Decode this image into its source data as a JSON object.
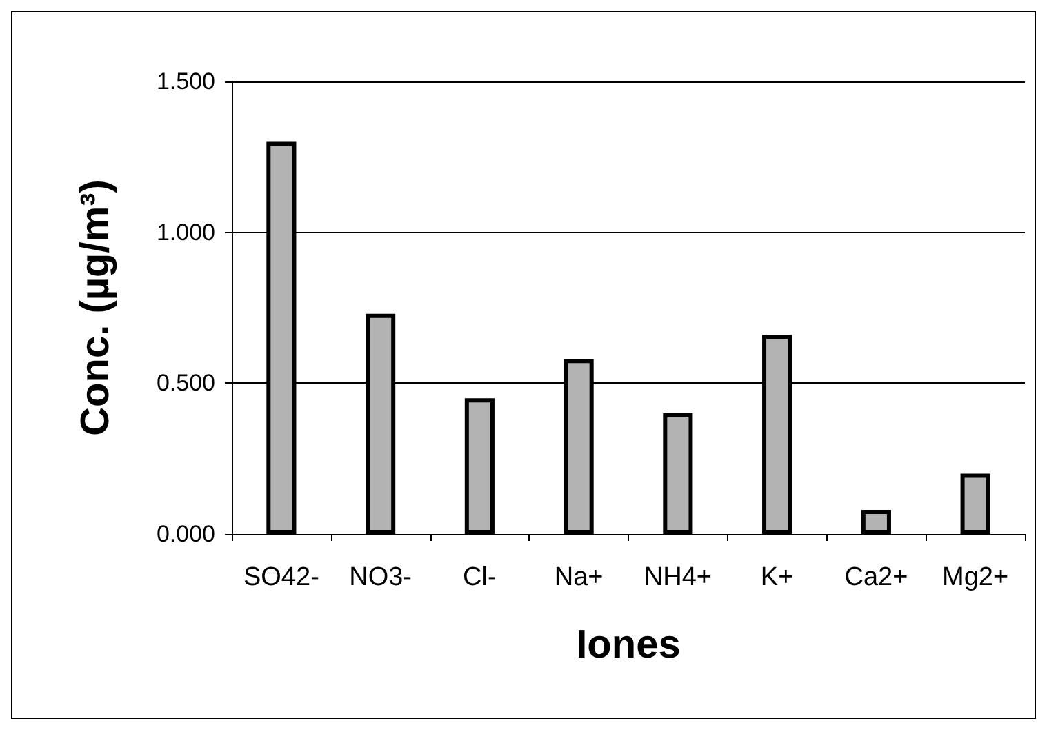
{
  "chart_data": {
    "type": "bar",
    "xlabel": "Iones",
    "ylabel": "Conc. (µg/m³)",
    "categories": [
      "SO42-",
      "NO3-",
      "Cl-",
      "Na+",
      "NH4+",
      "K+",
      "Ca2+",
      "Mg2+"
    ],
    "values": [
      1.3,
      0.73,
      0.45,
      0.58,
      0.4,
      0.66,
      0.08,
      0.2
    ],
    "color": "#b3b3b3",
    "ylim": [
      0,
      1.5
    ],
    "yticks": [
      {
        "value": 0,
        "label": "0.000"
      },
      {
        "value": 0.5,
        "label": "0.500"
      },
      {
        "value": 1,
        "label": "1.000"
      },
      {
        "value": 1.5,
        "label": "1.500"
      }
    ],
    "grid": "y"
  }
}
